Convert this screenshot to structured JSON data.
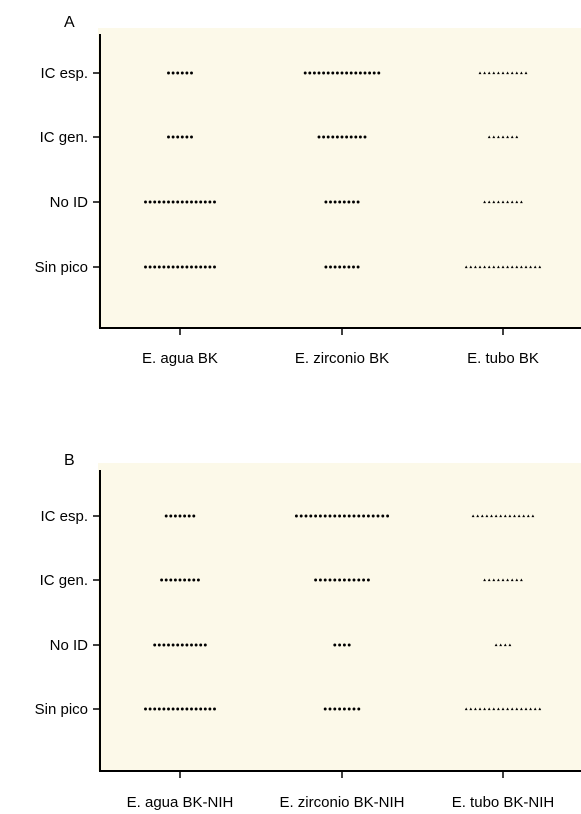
{
  "colors": {
    "background": "#fcf9e9",
    "marks": "#000000"
  },
  "chart_data": [
    {
      "panel": "A",
      "type": "scatter",
      "subtype": "dot-plot",
      "categories": [
        "E. agua BK",
        "E. zirconio BK",
        "E. tubo BK"
      ],
      "y_categories": [
        "IC esp.",
        "IC gen.",
        "No ID",
        "Sin pico"
      ],
      "series": [
        {
          "category": "E. agua BK",
          "marker": "circle",
          "counts": [
            6,
            6,
            16,
            16
          ]
        },
        {
          "category": "E. zirconio BK",
          "marker": "circle",
          "counts": [
            17,
            11,
            8,
            8
          ]
        },
        {
          "category": "E. tubo BK",
          "marker": "triangle",
          "counts": [
            11,
            7,
            9,
            17
          ]
        }
      ],
      "grid": false
    },
    {
      "panel": "B",
      "type": "scatter",
      "subtype": "dot-plot",
      "categories": [
        "E. agua BK-NIH",
        "E. zirconio BK-NIH",
        "E. tubo BK-NIH"
      ],
      "y_categories": [
        "IC esp.",
        "IC gen.",
        "No ID",
        "Sin pico"
      ],
      "series": [
        {
          "category": "E. agua BK-NIH",
          "marker": "circle",
          "counts": [
            7,
            9,
            12,
            16
          ]
        },
        {
          "category": "E. zirconio BK-NIH",
          "marker": "circle",
          "counts": [
            20,
            12,
            4,
            8
          ]
        },
        {
          "category": "E. tubo BK-NIH",
          "marker": "triangle",
          "counts": [
            14,
            9,
            4,
            17
          ]
        }
      ],
      "grid": false
    }
  ]
}
